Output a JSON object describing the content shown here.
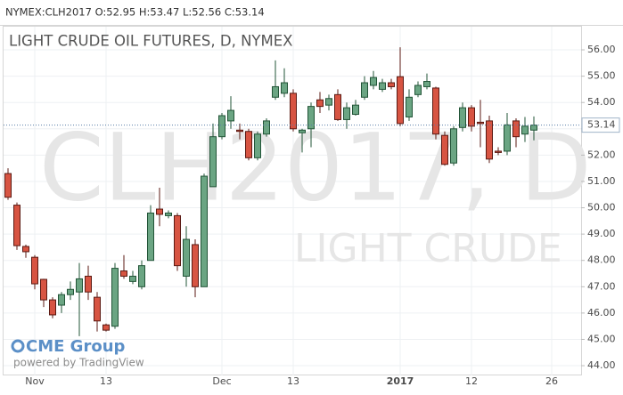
{
  "chart_data": {
    "type": "candlestick",
    "header": "NYMEX:CLH2017 O:52.95 H:53.47 L:52.56 C:53.14",
    "title": "LIGHT CRUDE OIL FUTURES, D, NYMEX",
    "watermark": "CLH2017, D",
    "watermark_subtitle": "LIGHT CRUDE",
    "logo": "CME Group",
    "credit": "powered by TradingView",
    "categories": [
      null,
      null,
      null,
      "Nov",
      null,
      null,
      null,
      null,
      null,
      null,
      null,
      "13",
      null,
      null,
      null,
      null,
      null,
      null,
      null,
      null,
      null,
      null,
      null,
      null,
      "Dec",
      null,
      null,
      null,
      null,
      null,
      null,
      null,
      "13",
      null,
      null,
      null,
      null,
      null,
      null,
      null,
      null,
      null,
      null,
      null,
      "2017",
      null,
      null,
      null,
      null,
      null,
      null,
      null,
      "12",
      null,
      null,
      null,
      null,
      null,
      null,
      null,
      null,
      "26",
      null,
      null
    ],
    "open": [
      51.3,
      50.1,
      48.53,
      48.12,
      47.28,
      46.5,
      46.3,
      46.7,
      46.8,
      47.4,
      46.6,
      45.55,
      45.5,
      47.6,
      47.2,
      47.0,
      48.0,
      49.95,
      49.7,
      49.7,
      47.4,
      48.6,
      47.0,
      50.8,
      52.7,
      53.3,
      52.95,
      52.9,
      51.9,
      52.8,
      54.2,
      54.35,
      54.35,
      52.85,
      53.0,
      54.1,
      53.9,
      54.3,
      53.35,
      53.55,
      54.2,
      54.65,
      54.5,
      54.75,
      54.98,
      53.45,
      54.3,
      54.6,
      54.55,
      52.75,
      51.7,
      53.05,
      53.8,
      53.25,
      53.3,
      52.15,
      52.15,
      53.3,
      52.8,
      52.95,
      null,
      null,
      null,
      null
    ],
    "high": [
      51.5,
      50.2,
      48.6,
      48.2,
      47.3,
      46.6,
      46.8,
      47.2,
      47.9,
      47.8,
      46.8,
      45.6,
      47.9,
      48.2,
      47.6,
      48.0,
      50.1,
      50.76,
      49.9,
      49.8,
      49.3,
      48.8,
      51.3,
      53.2,
      53.6,
      54.24,
      53.2,
      53.0,
      52.9,
      53.4,
      55.6,
      55.3,
      54.5,
      53.0,
      54.0,
      54.4,
      54.3,
      54.5,
      54.0,
      54.1,
      55.0,
      55.2,
      54.9,
      54.9,
      56.1,
      54.5,
      54.8,
      55.1,
      54.6,
      52.9,
      53.1,
      54.0,
      53.9,
      54.1,
      53.5,
      52.3,
      53.6,
      53.4,
      53.45,
      53.47,
      null,
      null,
      null,
      null
    ],
    "low": [
      50.3,
      48.4,
      48.1,
      46.9,
      46.23,
      45.8,
      46.0,
      46.5,
      45.12,
      46.5,
      45.3,
      45.3,
      45.4,
      47.3,
      47.1,
      46.9,
      48.0,
      49.3,
      49.6,
      47.6,
      47.0,
      46.6,
      47.0,
      50.8,
      52.6,
      53.0,
      52.6,
      51.8,
      51.8,
      52.7,
      54.1,
      54.2,
      52.9,
      52.1,
      52.3,
      53.6,
      53.7,
      53.3,
      53.0,
      53.5,
      54.1,
      54.5,
      54.4,
      54.5,
      53.1,
      53.3,
      54.2,
      54.5,
      52.6,
      51.6,
      51.6,
      52.9,
      52.9,
      52.3,
      51.7,
      52.0,
      52.0,
      52.3,
      52.5,
      52.56,
      null,
      null,
      null,
      null
    ],
    "close": [
      50.4,
      48.56,
      48.33,
      47.11,
      46.5,
      45.93,
      46.7,
      46.9,
      47.3,
      46.8,
      45.7,
      45.35,
      47.7,
      47.4,
      47.4,
      47.8,
      49.8,
      49.75,
      49.8,
      47.8,
      48.8,
      47.0,
      51.2,
      52.7,
      53.5,
      53.7,
      52.9,
      51.9,
      52.8,
      53.3,
      54.6,
      54.75,
      53.0,
      52.95,
      53.85,
      53.85,
      54.15,
      53.35,
      53.8,
      53.9,
      54.75,
      54.95,
      54.75,
      54.6,
      53.2,
      54.2,
      54.65,
      54.8,
      52.8,
      51.65,
      53.0,
      53.8,
      53.1,
      53.2,
      51.85,
      52.1,
      53.15,
      52.7,
      53.1,
      53.14,
      null,
      null,
      null,
      null
    ],
    "up_color": "#6ba583",
    "down_color": "#d75442",
    "up_border": "#225437",
    "down_border": "#5b1a13",
    "last_price": 53.14,
    "ylim": [
      43.63,
      56.88
    ],
    "yticks": [
      {
        "value": 44,
        "label": "44.00"
      },
      {
        "value": 45,
        "label": "45.00"
      },
      {
        "value": 46,
        "label": "46.00"
      },
      {
        "value": 47,
        "label": "47.00"
      },
      {
        "value": 48,
        "label": "48.00"
      },
      {
        "value": 49,
        "label": "49.00"
      },
      {
        "value": 50,
        "label": "50.00"
      },
      {
        "value": 51,
        "label": "51.00"
      },
      {
        "value": 52,
        "label": "52.00"
      },
      {
        "value": 53,
        "label": "53.00"
      },
      {
        "value": 54,
        "label": "54.00"
      },
      {
        "value": 55,
        "label": "55.00"
      },
      {
        "value": 56,
        "label": "56.00"
      }
    ],
    "grid": true
  }
}
